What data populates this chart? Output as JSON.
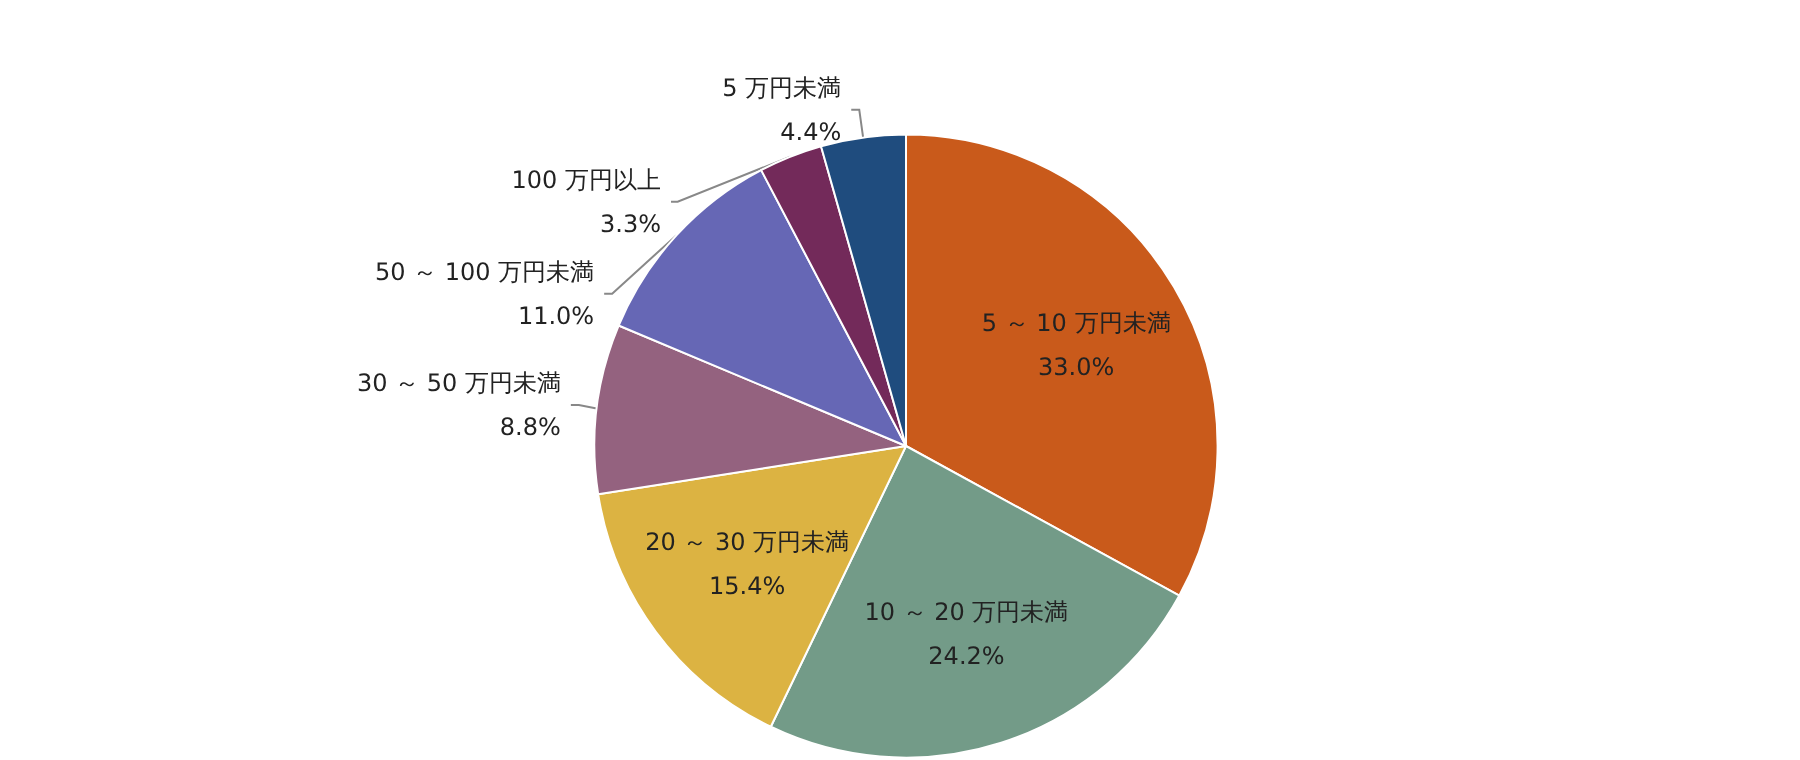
{
  "chart_data": {
    "type": "pie",
    "categories": [
      "5 ～ 10 万円未満",
      "10 ～ 20 万円未満",
      "20 ～ 30 万円未満",
      "30 ～ 50 万円未満",
      "50 ～ 100 万円未満",
      "100 万円以上",
      "5 万円未満"
    ],
    "values": [
      33.0,
      24.2,
      15.4,
      8.8,
      11.0,
      3.3,
      4.4
    ],
    "value_labels": [
      "33.0%",
      "24.2%",
      "15.4%",
      "8.8%",
      "11.0%",
      "3.3%",
      "4.4%"
    ],
    "colors": [
      "#c95a1b",
      "#739b88",
      "#dcb342",
      "#94627f",
      "#6667b5",
      "#732a5a",
      "#1f4c7e"
    ],
    "legend": false
  }
}
